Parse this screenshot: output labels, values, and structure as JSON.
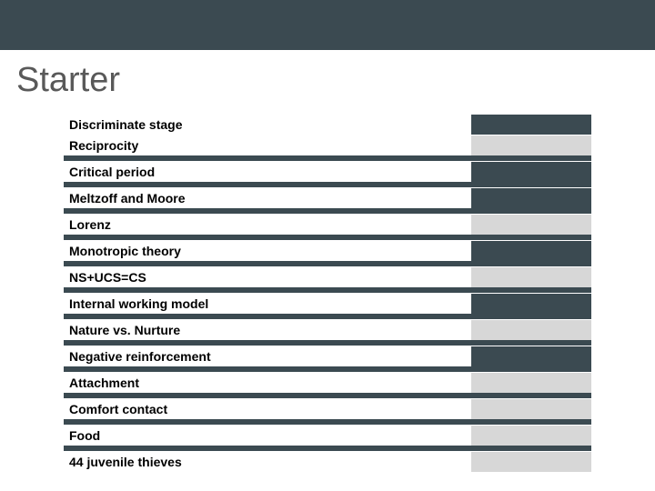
{
  "title": "Starter",
  "colors": {
    "top_bar": "#3b4a51",
    "title_text": "#595959",
    "row_bg_dark": "#3b4a51",
    "row_bg_light": "#d7d7d7",
    "label_bg": "#ffffff",
    "label_text": "#000000"
  },
  "groups": [
    {
      "rows": [
        {
          "label": "Discriminate stage",
          "value_bg": "dark"
        },
        {
          "label": "Reciprocity",
          "value_bg": "light"
        }
      ]
    },
    {
      "rows": [
        {
          "label": "Critical period",
          "value_bg": "dark"
        }
      ]
    },
    {
      "rows": [
        {
          "label": "Meltzoff and Moore",
          "value_bg": "dark"
        }
      ]
    },
    {
      "rows": [
        {
          "label": "Lorenz",
          "value_bg": "light"
        }
      ]
    },
    {
      "rows": [
        {
          "label": "Monotropic theory",
          "value_bg": "dark"
        }
      ]
    },
    {
      "rows": [
        {
          "label": "NS+UCS=CS",
          "value_bg": "light"
        }
      ]
    },
    {
      "rows": [
        {
          "label": "Internal working model",
          "value_bg": "dark"
        }
      ]
    },
    {
      "rows": [
        {
          "label": "Nature vs. Nurture",
          "value_bg": "light"
        }
      ]
    },
    {
      "rows": [
        {
          "label": "Negative reinforcement",
          "value_bg": "dark"
        }
      ]
    },
    {
      "rows": [
        {
          "label": "Attachment",
          "value_bg": "light"
        }
      ]
    },
    {
      "rows": [
        {
          "label": "Comfort contact",
          "value_bg": "light"
        }
      ]
    },
    {
      "rows": [
        {
          "label": "Food",
          "value_bg": "light"
        }
      ]
    },
    {
      "rows": [
        {
          "label": "44 juvenile thieves",
          "value_bg": "light"
        }
      ]
    }
  ]
}
